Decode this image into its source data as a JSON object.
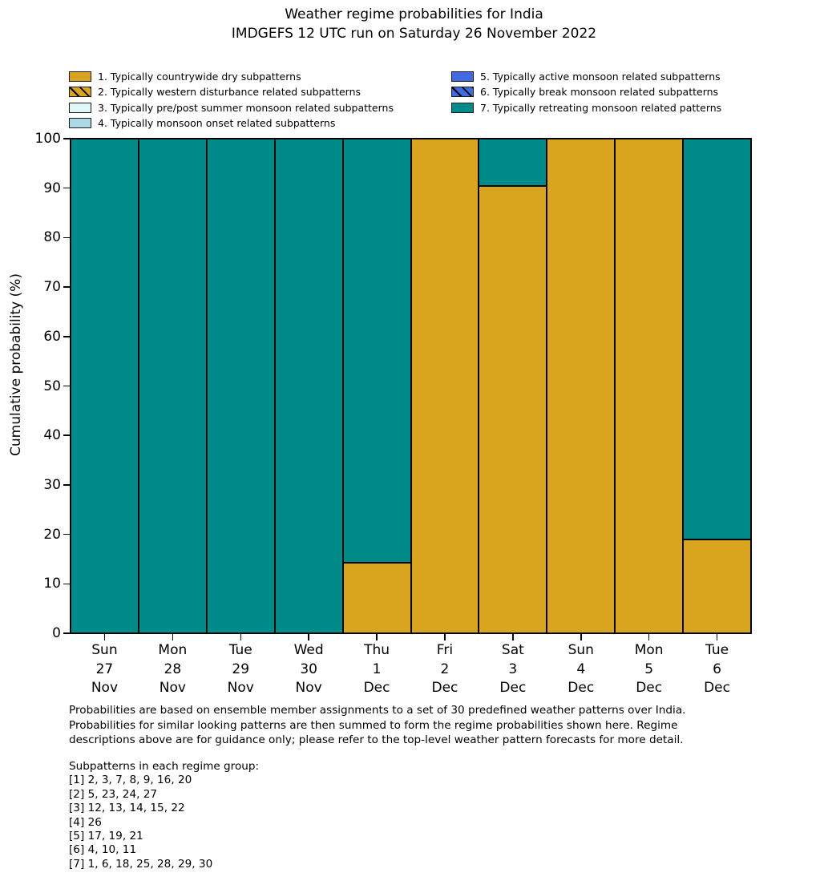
{
  "title": {
    "line1": "Weather regime probabilities for India",
    "line2": "IMDGEFS 12 UTC run on Saturday 26 November 2022"
  },
  "legend": {
    "items": [
      {
        "label": "1. Typically countrywide dry subpatterns",
        "color": "#d9a521",
        "hatch": false
      },
      {
        "label": "2. Typically western disturbance related subpatterns",
        "color": "#d9a521",
        "hatch": true
      },
      {
        "label": "3. Typically pre/post summer monsoon related subpatterns",
        "color": "#e1f7f7",
        "hatch": false
      },
      {
        "label": "4. Typically monsoon onset related subpatterns",
        "color": "#add8e6",
        "hatch": false
      },
      {
        "label": "5. Typically active monsoon related subpatterns",
        "color": "#4169e1",
        "hatch": false
      },
      {
        "label": "6. Typically break monsoon related subpatterns",
        "color": "#4169e1",
        "hatch": true
      },
      {
        "label": "7. Typically retreating monsoon related patterns",
        "color": "#008b8b",
        "hatch": false
      }
    ]
  },
  "chart_data": {
    "type": "bar",
    "stacked": true,
    "title": "Weather regime probabilities for India — IMDGEFS 12 UTC run on Saturday 26 November 2022",
    "xlabel": "",
    "ylabel": "Cumulative probability (%)",
    "ylim": [
      0,
      100
    ],
    "yticks": [
      0,
      10,
      20,
      30,
      40,
      50,
      60,
      70,
      80,
      90,
      100
    ],
    "grid": false,
    "legend_position": "above plot, two columns",
    "bar_edge_color": "#000000",
    "categories": [
      {
        "day": "Sun",
        "date": "27",
        "month": "Nov"
      },
      {
        "day": "Mon",
        "date": "28",
        "month": "Nov"
      },
      {
        "day": "Tue",
        "date": "29",
        "month": "Nov"
      },
      {
        "day": "Wed",
        "date": "30",
        "month": "Nov"
      },
      {
        "day": "Thu",
        "date": "1",
        "month": "Dec"
      },
      {
        "day": "Fri",
        "date": "2",
        "month": "Dec"
      },
      {
        "day": "Sat",
        "date": "3",
        "month": "Dec"
      },
      {
        "day": "Sun",
        "date": "4",
        "month": "Dec"
      },
      {
        "day": "Mon",
        "date": "5",
        "month": "Dec"
      },
      {
        "day": "Tue",
        "date": "6",
        "month": "Dec"
      }
    ],
    "series": [
      {
        "name": "1. Typically countrywide dry subpatterns",
        "color": "#d9a521",
        "hatch": false,
        "values": [
          0,
          0,
          0,
          0,
          14.3,
          100,
          90.5,
          100,
          100,
          19
        ]
      },
      {
        "name": "2. Typically western disturbance related subpatterns",
        "color": "#d9a521",
        "hatch": true,
        "values": [
          0,
          0,
          0,
          0,
          0,
          0,
          0,
          0,
          0,
          0
        ]
      },
      {
        "name": "3. Typically pre/post summer monsoon related subpatterns",
        "color": "#e1f7f7",
        "hatch": false,
        "values": [
          0,
          0,
          0,
          0,
          0,
          0,
          0,
          0,
          0,
          0
        ]
      },
      {
        "name": "4. Typically monsoon onset related subpatterns",
        "color": "#add8e6",
        "hatch": false,
        "values": [
          0,
          0,
          0,
          0,
          0,
          0,
          0,
          0,
          0,
          0
        ]
      },
      {
        "name": "5. Typically active monsoon related subpatterns",
        "color": "#4169e1",
        "hatch": false,
        "values": [
          0,
          0,
          0,
          0,
          0,
          0,
          0,
          0,
          0,
          0
        ]
      },
      {
        "name": "6. Typically break monsoon related subpatterns",
        "color": "#4169e1",
        "hatch": true,
        "values": [
          0,
          0,
          0,
          0,
          0,
          0,
          0,
          0,
          0,
          0
        ]
      },
      {
        "name": "7. Typically retreating monsoon related patterns",
        "color": "#008b8b",
        "hatch": false,
        "values": [
          100,
          100,
          100,
          100,
          85.7,
          0,
          9.5,
          0,
          0,
          81
        ]
      }
    ]
  },
  "footnote": {
    "lines": [
      "Probabilities are based on ensemble member assignments to a set of 30 predefined weather patterns over India.",
      "Probabilities for similar looking patterns are then summed to form the regime probabilities shown here. Regime",
      "descriptions above are for guidance only; please refer to the top-level weather pattern forecasts for more detail."
    ]
  },
  "subpatterns": {
    "heading": "Subpatterns in each regime group:",
    "lines": [
      "[1] 2, 3, 7, 8, 9, 16, 20",
      "[2] 5, 23, 24, 27",
      "[3] 12, 13, 14, 15, 22",
      "[4] 26",
      "[5] 17, 19, 21",
      "[6] 4, 10, 11",
      "[7] 1, 6, 18, 25, 28, 29, 30"
    ]
  }
}
